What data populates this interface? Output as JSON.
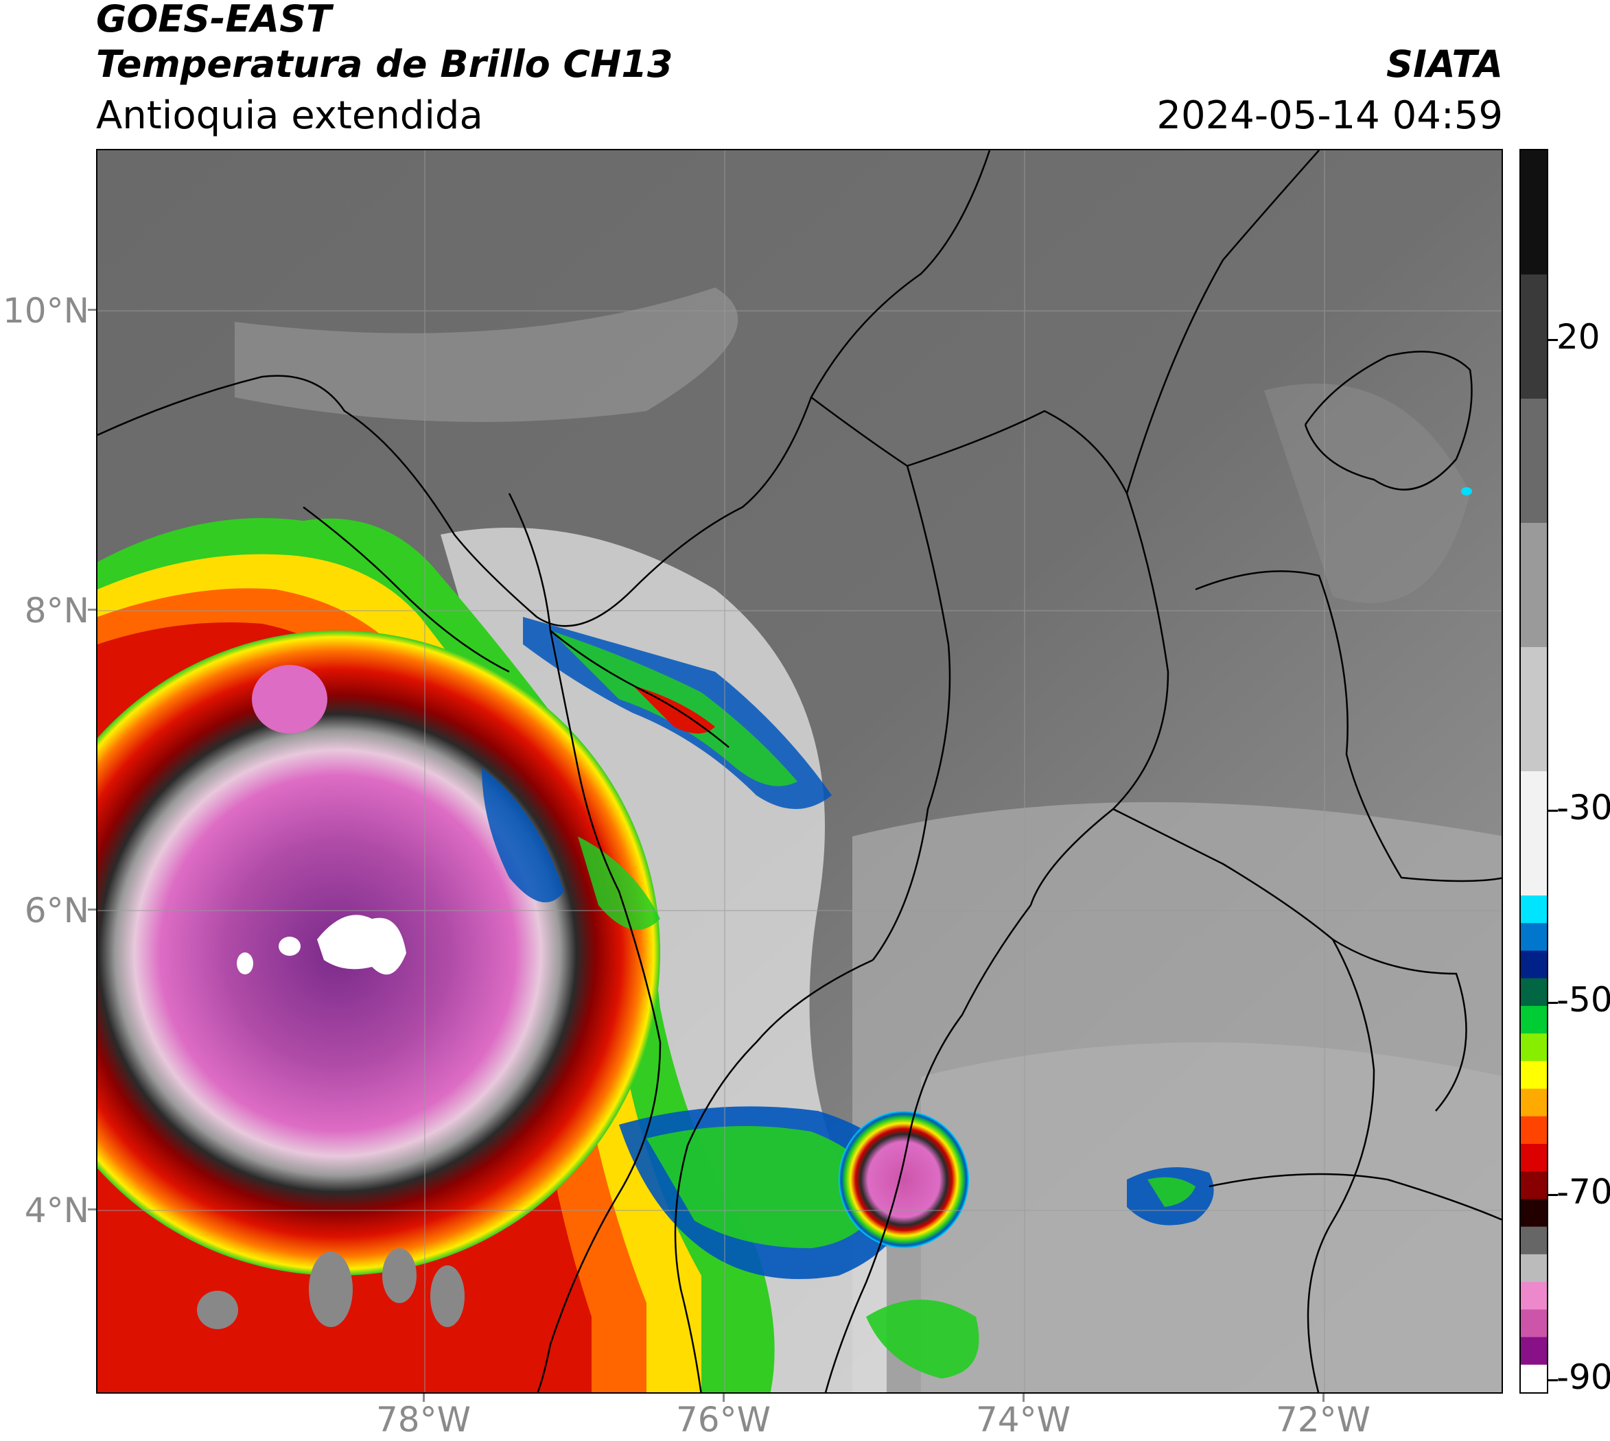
{
  "header": {
    "satellite": "GOES-EAST",
    "product": "Temperatura de Brillo CH13",
    "region": "Antioquia extendida",
    "agency": "SIATA",
    "datetime": "2024-05-14 04:59"
  },
  "axes": {
    "lat_labels": [
      "10°N",
      "8°N",
      "6°N",
      "4°N"
    ],
    "lon_labels": [
      "78°W",
      "76°W",
      "74°W",
      "72°W"
    ]
  },
  "colorbar": {
    "labels": [
      "20",
      "-30",
      "-50",
      "-70",
      "-90"
    ],
    "stops": [
      "#111111",
      "#3a3a3a",
      "#6a6a6a",
      "#9a9a9a",
      "#c8c8c8",
      "#f2f2f2",
      "#00e5ff",
      "#0077cc",
      "#002288",
      "#006644",
      "#00cc33",
      "#88ee00",
      "#ffff00",
      "#ffaa00",
      "#ff4400",
      "#dd0000",
      "#880000",
      "#220000",
      "#666666",
      "#bbbbbb",
      "#ee88cc",
      "#cc55aa",
      "#881188",
      "#ffffff"
    ]
  },
  "colors": {
    "background_gray": "#7a7a7a",
    "cold_cloud_pink": "#cc55aa",
    "cold_cloud_purple": "#8a2a8a",
    "warm_red": "#dd1100",
    "green": "#22cc22",
    "blue": "#0055bb",
    "cyan": "#00ddff"
  }
}
